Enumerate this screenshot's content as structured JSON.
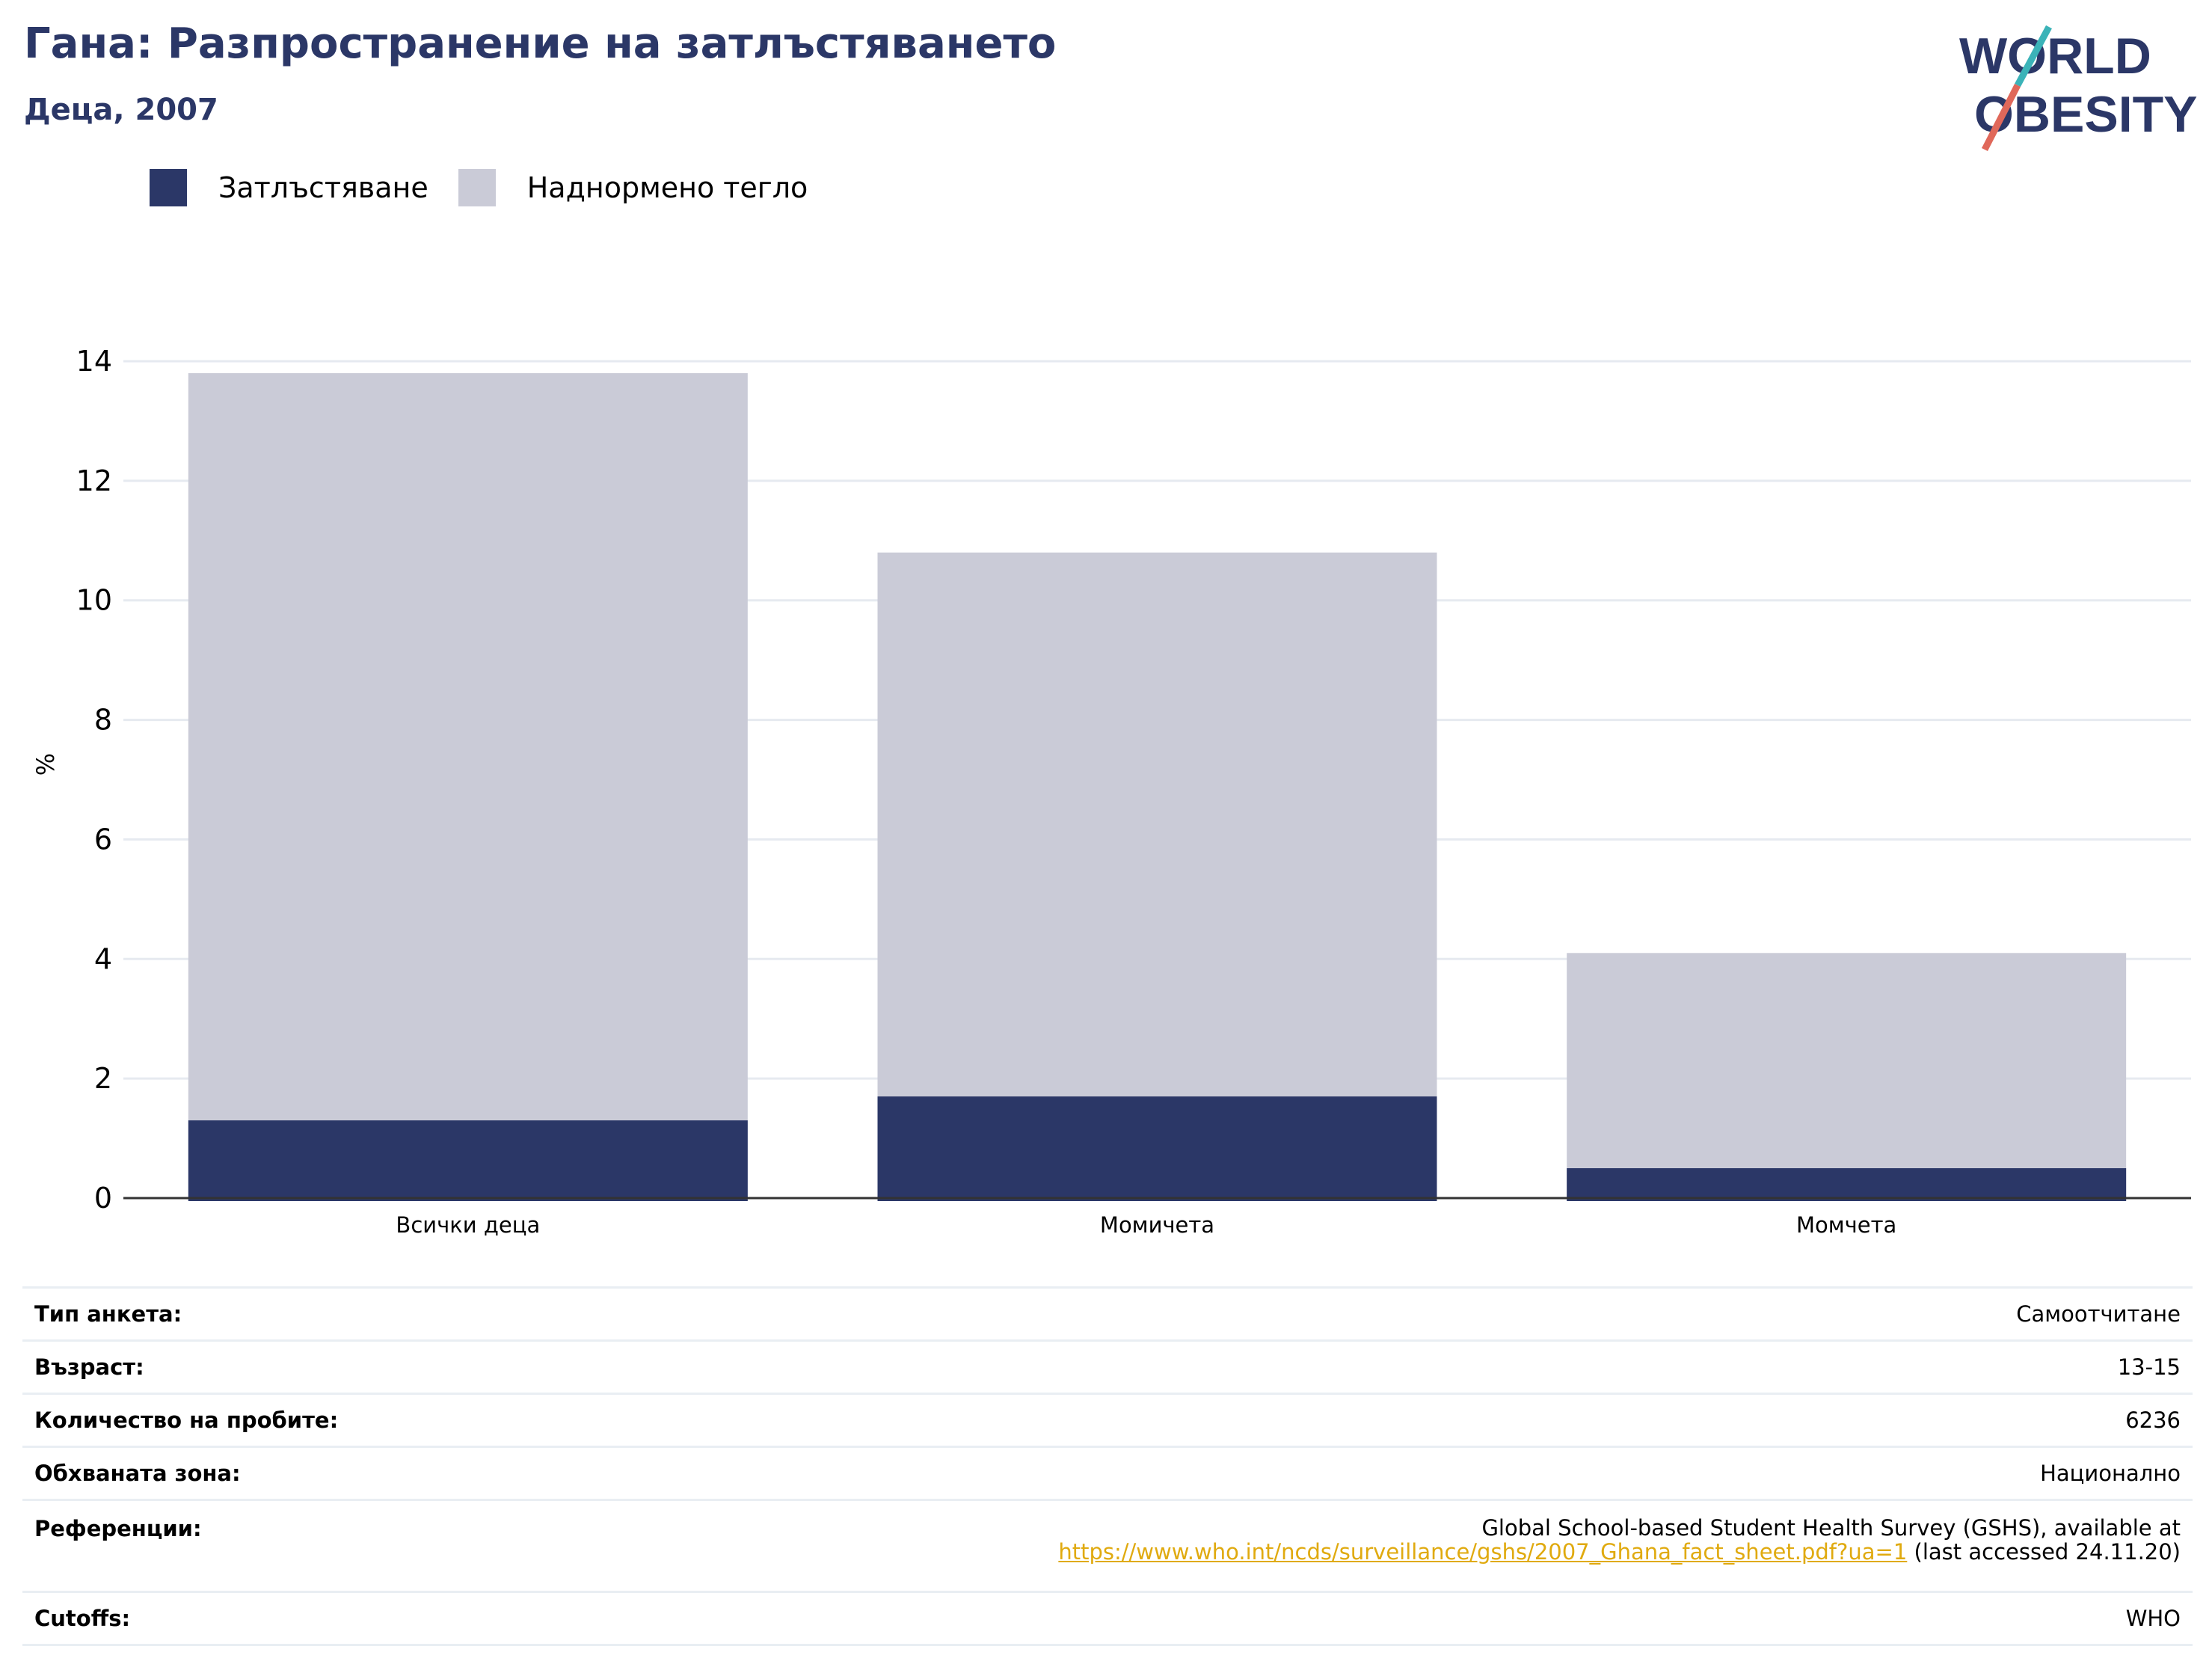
{
  "header": {
    "title": "Гана: Разпространение на затлъстяването",
    "subtitle": "Деца, 2007"
  },
  "logo": {
    "line1": "WORLD",
    "line2": "OBESITY",
    "colors": {
      "text": "#2b3767",
      "slash_top": "#3bb3b8",
      "slash_bottom": "#e0685a"
    }
  },
  "legend": [
    {
      "label": "Затлъстяване",
      "color": "#2b3767"
    },
    {
      "label": "Наднормено тегло",
      "color": "#cacbd7"
    }
  ],
  "chart_data": {
    "type": "bar",
    "stacked": false,
    "overlay": true,
    "categories": [
      "Всички деца",
      "Момичета",
      "Момчета"
    ],
    "series": [
      {
        "name": "Затлъстяване",
        "values": [
          1.3,
          1.7,
          0.5
        ],
        "color": "#2b3767"
      },
      {
        "name": "Наднормено тегло",
        "values": [
          13.8,
          10.8,
          4.1
        ],
        "color": "#cacbd7"
      }
    ],
    "ylabel": "%",
    "ylim": [
      0,
      14
    ],
    "yticks": [
      "0",
      "2",
      "4",
      "6",
      "8",
      "10",
      "12",
      "14"
    ],
    "grid": true,
    "legend_position": "top-left"
  },
  "info": {
    "survey_type": {
      "label": "Тип анкета:",
      "value": "Самоотчитане"
    },
    "age": {
      "label": "Възраст:",
      "value": "13-15"
    },
    "sample_size": {
      "label": "Количество на пробите:",
      "value": "6236"
    },
    "area": {
      "label": "Обхваната зона:",
      "value": "Национално"
    },
    "references": {
      "label": "Референции:",
      "text": "Global School-based Student Health Survey (GSHS), available at",
      "link": "https://www.who.int/ncds/surveillance/gshs/2007_Ghana_fact_sheet.pdf?ua=1",
      "suffix": " (last accessed 24.11.20)"
    },
    "cutoffs": {
      "label": "Cutoffs:",
      "value": "WHO"
    }
  }
}
